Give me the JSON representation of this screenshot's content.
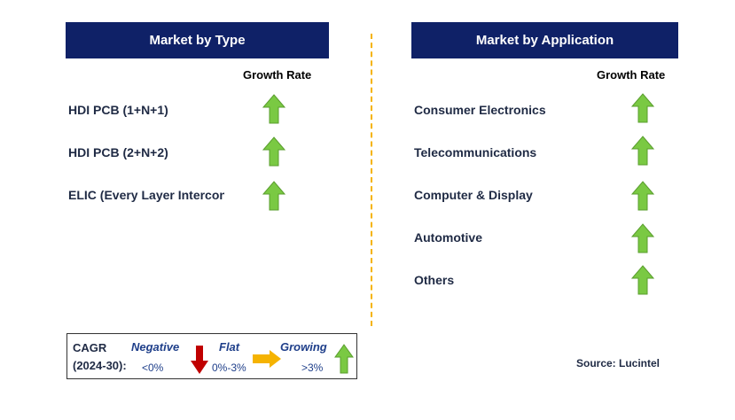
{
  "left": {
    "title": "Market by Type",
    "growth_label": "Growth Rate",
    "items": [
      {
        "label": "HDI PCB (1+N+1)",
        "trend": "growing"
      },
      {
        "label": "HDI PCB (2+N+2)",
        "trend": "growing"
      },
      {
        "label": "ELIC (Every Layer Interconnect)",
        "trend": "growing"
      }
    ]
  },
  "right": {
    "title": "Market by Application",
    "growth_label": "Growth Rate",
    "items": [
      {
        "label": "Consumer Electronics",
        "trend": "growing"
      },
      {
        "label": "Telecommunications",
        "trend": "growing"
      },
      {
        "label": "Computer & Display",
        "trend": "growing"
      },
      {
        "label": "Automotive",
        "trend": "growing"
      },
      {
        "label": "Others",
        "trend": "growing"
      }
    ]
  },
  "legend": {
    "cagr": "CAGR",
    "period": "(2024-30):",
    "negative": "Negative",
    "negative_range": "<0%",
    "flat": "Flat",
    "flat_range": "0%-3%",
    "growing": "Growing",
    "growing_range": ">3%"
  },
  "source": "Source: Lucintel",
  "colors": {
    "header_bg": "#0f2167",
    "growing": "#7ac943",
    "flat": "#f5b301",
    "negative": "#c00000",
    "divider": "#f5b301"
  },
  "icons": {
    "growing": "green-up-arrow-icon",
    "flat": "yellow-right-arrow-icon",
    "negative": "red-down-arrow-icon"
  }
}
